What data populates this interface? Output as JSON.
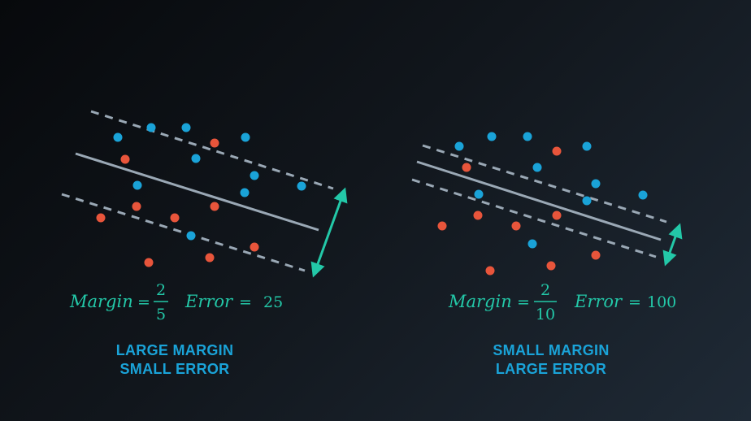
{
  "panels": [
    {
      "id": "left",
      "formula": {
        "margin_word": "Margin",
        "equals": "=",
        "numerator": "2",
        "denominator": "5",
        "error_word": "Error",
        "error_equals": "=",
        "error_value": "25"
      },
      "caption_line1": "LARGE MARGIN",
      "caption_line2": "SMALL ERROR"
    },
    {
      "id": "right",
      "formula": {
        "margin_word": "Margin",
        "equals": "=",
        "numerator": "2",
        "denominator": "10",
        "error_word": "Error",
        "error_equals": "=",
        "error_value": "100"
      },
      "caption_line1": "SMALL MARGIN",
      "caption_line2": "LARGE ERROR"
    }
  ],
  "colors": {
    "blue_point": "#1aa3d8",
    "red_point": "#e8553b",
    "line": "#9aa8b5",
    "arrow": "#23c8a8"
  }
}
